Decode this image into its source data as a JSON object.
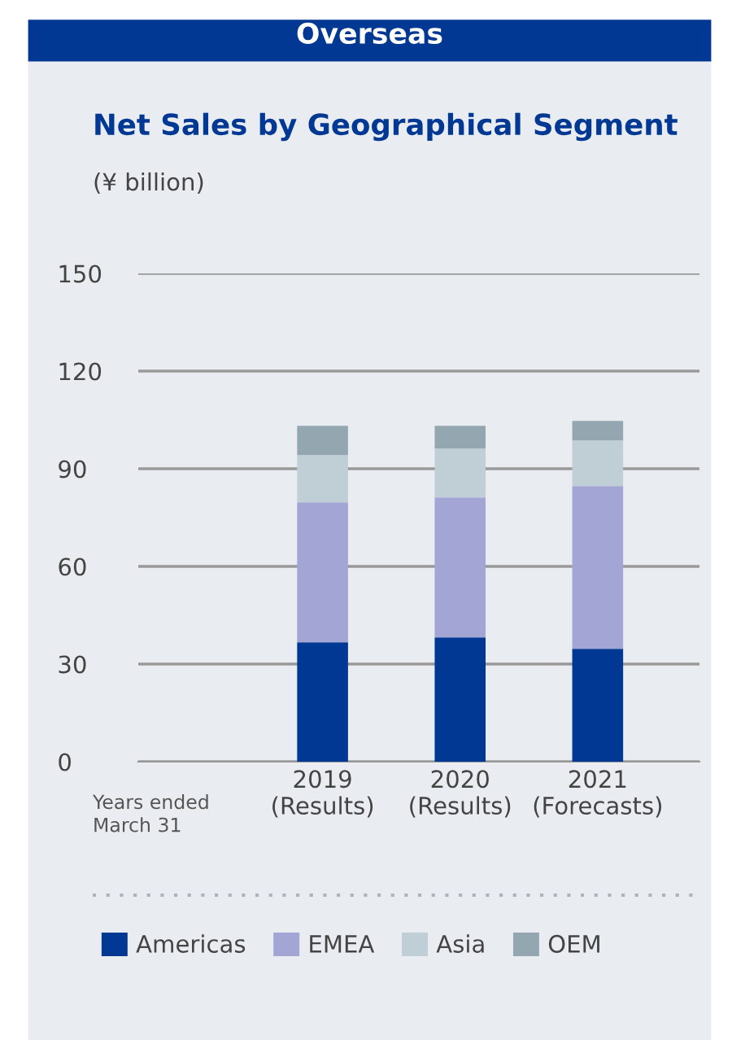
{
  "chart_data": {
    "type": "bar",
    "title": "Net Sales by Geographical Segment",
    "subtitle": "(¥ billion)",
    "annotations": [
      "Overseas",
      "Years ended\nMarch 31"
    ],
    "categories": [
      "2019\n(Results)",
      "2020\n(Results)",
      "2021\n(Forecasts)"
    ],
    "stacked": true,
    "series": [
      {
        "name": "Americas",
        "color": "#003893",
        "values": [
          36.7,
          38.2,
          34.7
        ]
      },
      {
        "name": "EMEA",
        "color": "#a3a6d4",
        "values": [
          43.0,
          43.0,
          50.0
        ]
      },
      {
        "name": "Asia",
        "color": "#c0ced6",
        "values": [
          14.5,
          15.0,
          14.0
        ]
      },
      {
        "name": "OEM",
        "color": "#94a7b1",
        "values": [
          9.0,
          7.0,
          6.0
        ]
      }
    ],
    "ylim": [
      0,
      150
    ],
    "yticks": [
      0,
      30,
      60,
      90,
      120,
      150
    ],
    "grid": "y",
    "legend": "bottom"
  }
}
